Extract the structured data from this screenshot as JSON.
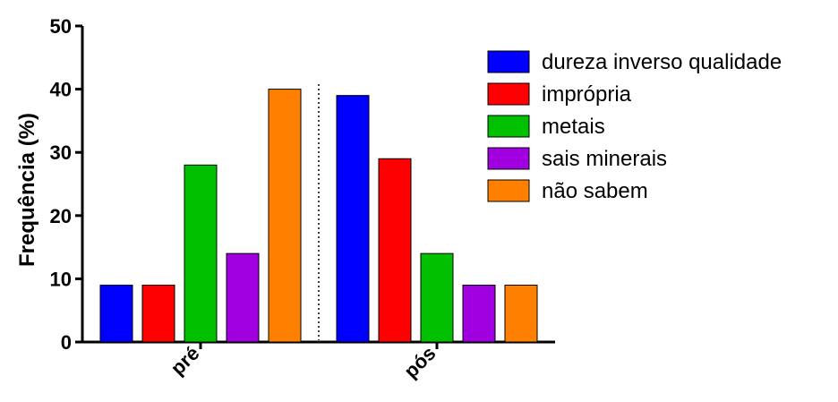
{
  "chart_data": {
    "type": "bar",
    "title": "",
    "xlabel": "",
    "ylabel": "Frequência (%)",
    "ylim": [
      0,
      50
    ],
    "yticks": [
      0,
      10,
      20,
      30,
      40,
      50
    ],
    "categories": [
      "pré",
      "pós"
    ],
    "grid": false,
    "legend_position": "right",
    "separator": "dotted vertical line between groups",
    "series": [
      {
        "name": "dureza inverso qualidade",
        "color": "#0000ff",
        "values": [
          9,
          39
        ]
      },
      {
        "name": "imprópria",
        "color": "#ff0000",
        "values": [
          9,
          29
        ]
      },
      {
        "name": "metais",
        "color": "#00c000",
        "values": [
          28,
          14
        ]
      },
      {
        "name": "sais minerais",
        "color": "#a000e0",
        "values": [
          14,
          9
        ]
      },
      {
        "name": "não sabem",
        "color": "#ff8000",
        "values": [
          40,
          9
        ]
      }
    ]
  }
}
